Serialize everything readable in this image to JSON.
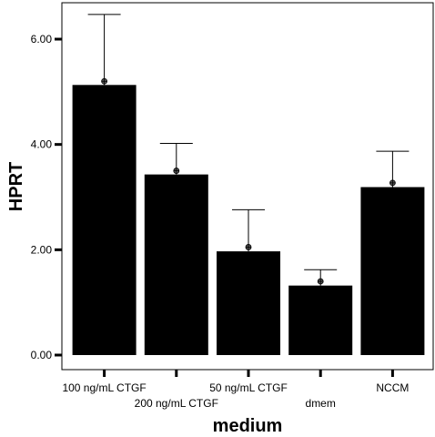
{
  "chart_data": {
    "type": "bar",
    "xlabel": "medium",
    "ylabel": "HPRT",
    "categories": [
      "100 ng/mL CTGF",
      "200 ng/mL CTGF",
      "50 ng/mL CTGF",
      "dmem",
      "NCCM"
    ],
    "values": [
      5.13,
      3.43,
      1.97,
      1.32,
      3.19
    ],
    "error_upper": [
      6.47,
      4.02,
      2.76,
      1.62,
      3.87
    ],
    "point_markers": [
      5.2,
      3.5,
      2.05,
      1.4,
      3.27
    ],
    "ylim": [
      -0.2,
      6.8
    ],
    "yticks": [
      {
        "value": 0,
        "label": "0.00"
      },
      {
        "value": 2,
        "label": "2.00"
      },
      {
        "value": 4,
        "label": "4.00"
      },
      {
        "value": 6,
        "label": "6.00"
      }
    ],
    "grid": false,
    "legend": "none",
    "colors": {
      "bar": "#000000",
      "error": "#000000",
      "marker": "#555555"
    }
  }
}
